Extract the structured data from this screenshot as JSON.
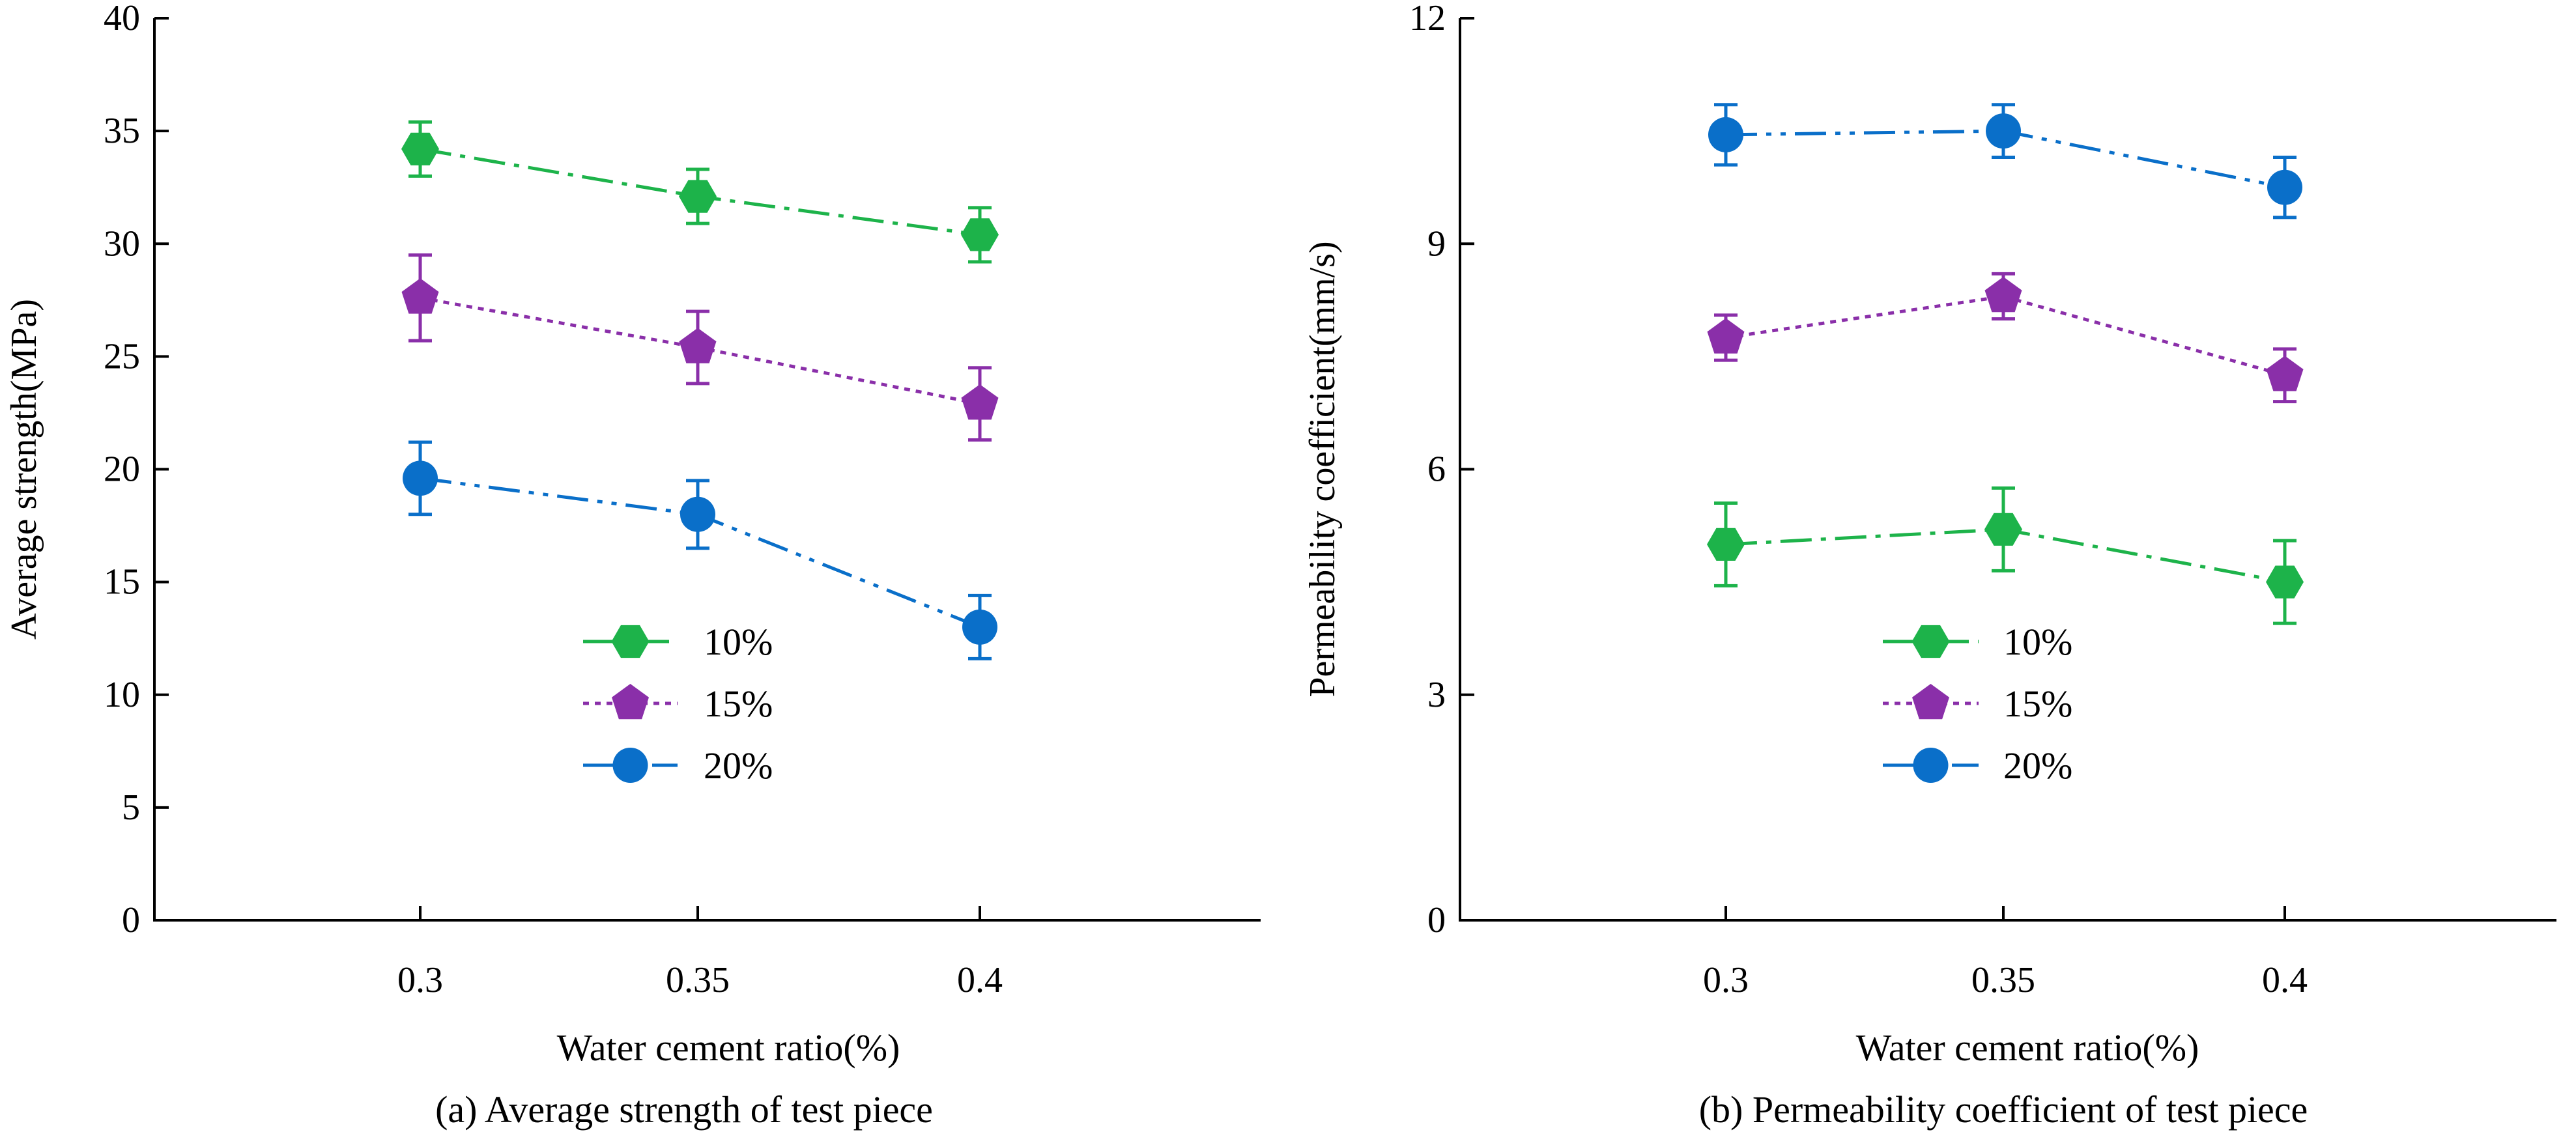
{
  "chart_data": [
    {
      "type": "line",
      "caption": "(a) Average strength of test piece",
      "xlabel": "Water cement ratio(%)",
      "ylabel": "Average strength(MPa)",
      "categories": [
        "0.3",
        "0.35",
        "0.4"
      ],
      "yticks": [
        "0",
        "5",
        "10",
        "15",
        "20",
        "25",
        "30",
        "35",
        "40"
      ],
      "ylim": [
        0,
        40
      ],
      "legend_position": "lower-center",
      "series": [
        {
          "name": "10%",
          "color": "#1db34a",
          "marker": "hexagon",
          "dash": "dashdot",
          "values": [
            34.2,
            32.1,
            30.4
          ],
          "errors": [
            1.2,
            1.2,
            1.2
          ]
        },
        {
          "name": "15%",
          "color": "#8a2fa9",
          "marker": "pentagon",
          "dash": "dotted",
          "values": [
            27.6,
            25.4,
            22.9
          ],
          "errors": [
            1.9,
            1.6,
            1.6
          ]
        },
        {
          "name": "20%",
          "color": "#0a6fc9",
          "marker": "circle",
          "dash": "dashdotdot",
          "values": [
            19.6,
            18.0,
            13.0
          ],
          "errors": [
            1.6,
            1.5,
            1.4
          ]
        }
      ]
    },
    {
      "type": "line",
      "caption": "(b) Permeability coefficient of test piece",
      "xlabel": "Water cement ratio(%)",
      "ylabel": "Permeability coefficient(mm/s)",
      "categories": [
        "0.3",
        "0.35",
        "0.4"
      ],
      "yticks": [
        "0",
        "3",
        "6",
        "9",
        "12"
      ],
      "ylim": [
        0,
        12
      ],
      "legend_position": "lower-center",
      "series": [
        {
          "name": "10%",
          "color": "#1db34a",
          "marker": "hexagon",
          "dash": "dashdot",
          "values": [
            5.0,
            5.2,
            4.5
          ],
          "errors": [
            0.55,
            0.55,
            0.55
          ]
        },
        {
          "name": "15%",
          "color": "#8a2fa9",
          "marker": "pentagon",
          "dash": "dotted",
          "values": [
            7.75,
            8.3,
            7.25
          ],
          "errors": [
            0.3,
            0.3,
            0.35
          ]
        },
        {
          "name": "20%",
          "color": "#0a6fc9",
          "marker": "circle",
          "dash": "dashdotdot",
          "values": [
            10.45,
            10.5,
            9.75
          ],
          "errors": [
            0.4,
            0.35,
            0.4
          ]
        }
      ]
    }
  ]
}
